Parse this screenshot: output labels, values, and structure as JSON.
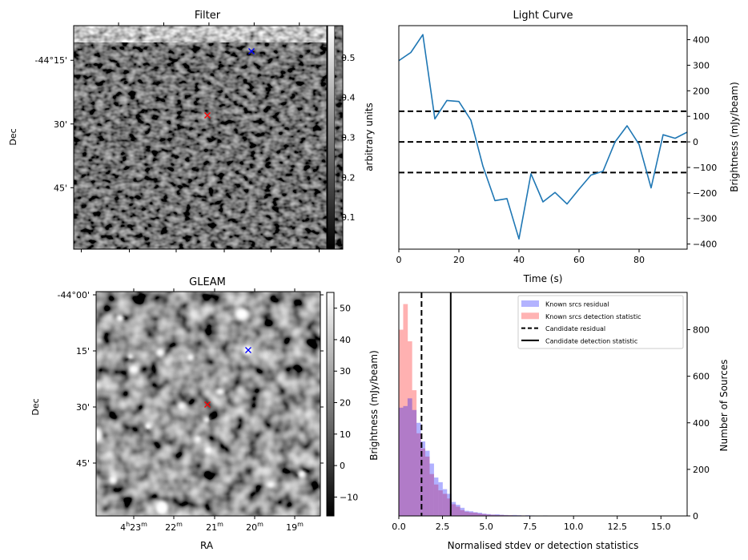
{
  "chart_data": [
    {
      "id": "filter",
      "type": "heatmap",
      "title": "Filter",
      "xlabel": "",
      "ylabel": "Dec",
      "ytick_labels": [
        "-44°15'",
        "30'",
        "45'"
      ],
      "xtick_labels": [],
      "colorbar": {
        "label": "arbitrary units",
        "ticks": [
          "0.1",
          "0.2",
          "0.3",
          "0.4",
          "0.5"
        ],
        "range": [
          0.02,
          0.58
        ],
        "colormap": "gray"
      },
      "markers": [
        {
          "name": "candidate",
          "symbol": "x",
          "color": "#ff0000",
          "ra_min": 21.1,
          "dec_arcmin": 28
        },
        {
          "name": "known-source",
          "symbol": "x",
          "color": "#0000ff",
          "ra_min": 20.1,
          "dec_arcmin": 13
        }
      ]
    },
    {
      "id": "light-curve",
      "type": "line",
      "title": "Light Curve",
      "xlabel": "Time (s)",
      "ylabel": "Brightness (mJy/beam)",
      "xlim": [
        0,
        96
      ],
      "ylim": [
        -420,
        455
      ],
      "xtick_labels": [
        "0",
        "20",
        "40",
        "60",
        "80"
      ],
      "xticks": [
        0,
        20,
        40,
        60,
        80
      ],
      "ytick_labels": [
        "−400",
        "−300",
        "−200",
        "−100",
        "0",
        "100",
        "200",
        "300",
        "400"
      ],
      "yticks": [
        -400,
        -300,
        -200,
        -100,
        0,
        100,
        200,
        300,
        400
      ],
      "series": [
        {
          "name": "light curve",
          "color": "#1f77b4",
          "x": [
            0,
            4,
            8,
            12,
            16,
            20,
            24,
            28,
            32,
            36,
            40,
            44,
            48,
            52,
            56,
            60,
            64,
            68,
            72,
            76,
            80,
            84,
            88,
            92,
            96
          ],
          "y": [
            318,
            350,
            420,
            90,
            162,
            158,
            85,
            -95,
            -230,
            -222,
            -380,
            -125,
            -235,
            -198,
            -243,
            -185,
            -130,
            -115,
            0,
            63,
            -10,
            -180,
            28,
            14,
            38
          ]
        }
      ],
      "hlines": [
        {
          "y": 120,
          "style": "dashed",
          "color": "#000000"
        },
        {
          "y": 0,
          "style": "dashed",
          "color": "#000000"
        },
        {
          "y": -120,
          "style": "dashed",
          "color": "#000000"
        }
      ]
    },
    {
      "id": "gleam",
      "type": "heatmap",
      "title": "GLEAM",
      "xlabel": "RA",
      "ylabel": "Dec",
      "xtick_labels": [
        {
          "h": "4",
          "m": "23"
        },
        {
          "h": "",
          "m": "22"
        },
        {
          "h": "",
          "m": "21"
        },
        {
          "h": "",
          "m": "20"
        },
        {
          "h": "",
          "m": "19"
        }
      ],
      "ytick_labels": [
        "-44°00'",
        "15'",
        "30'",
        "45'"
      ],
      "colorbar": {
        "label": "Brightness (mJy/beam)",
        "ticks": [
          "−10",
          "0",
          "10",
          "20",
          "30",
          "40",
          "50"
        ],
        "range": [
          -16,
          55
        ],
        "colormap": "gray"
      },
      "markers": [
        {
          "name": "candidate",
          "symbol": "x",
          "color": "#ff0000",
          "ra_min": 21.15,
          "dec_arcmin": 29.5
        },
        {
          "name": "known-source",
          "symbol": "x",
          "color": "#0000ff",
          "ra_min": 20.15,
          "dec_arcmin": 15
        }
      ]
    },
    {
      "id": "histogram",
      "type": "bar",
      "title": "",
      "xlabel": "Normalised stdev or detection statistics",
      "ylabel_left": "Brightness (mJy/beam)",
      "ylabel": "Number of Sources",
      "xlim": [
        0,
        16.5
      ],
      "ylim": [
        0,
        960
      ],
      "xtick_labels": [
        "0.0",
        "2.5",
        "5.0",
        "7.5",
        "10.0",
        "12.5",
        "15.0"
      ],
      "xticks": [
        0,
        2.5,
        5,
        7.5,
        10,
        12.5,
        15
      ],
      "ytick_labels": [
        "0",
        "200",
        "400",
        "600",
        "800"
      ],
      "yticks": [
        0,
        200,
        400,
        600,
        800
      ],
      "bin_width": 0.25,
      "series": [
        {
          "name": "Known srcs residual",
          "color": "#0000ff",
          "alpha": 0.3,
          "bin_start": 0,
          "values": [
            465,
            472,
            505,
            455,
            400,
            320,
            280,
            225,
            165,
            145,
            115,
            95,
            60,
            48,
            35,
            22,
            20,
            16,
            14,
            10,
            8,
            6,
            7,
            5,
            4,
            3,
            4,
            3,
            2,
            3,
            2,
            1,
            1,
            2,
            1,
            1,
            1,
            1,
            0,
            1,
            0,
            1,
            0,
            0,
            0,
            0,
            0,
            1
          ]
        },
        {
          "name": "Known srcs detection statistic",
          "color": "#ff0000",
          "alpha": 0.3,
          "bin_start": 0,
          "values": [
            800,
            910,
            750,
            540,
            355,
            290,
            255,
            180,
            135,
            110,
            95,
            75,
            50,
            40,
            25,
            18,
            15,
            14,
            10,
            8,
            6,
            5,
            4,
            4,
            3,
            3,
            2,
            2,
            2,
            1,
            1,
            1,
            1,
            1,
            0,
            1,
            0,
            1,
            0,
            0,
            0,
            0,
            0,
            0,
            0,
            0,
            1,
            0,
            0,
            0,
            0,
            0,
            0,
            0,
            0,
            0,
            0,
            0,
            0,
            0,
            0,
            0,
            1
          ]
        }
      ],
      "vlines": [
        {
          "name": "Candidate residual",
          "x": 1.3,
          "style": "dashed",
          "color": "#000000"
        },
        {
          "name": "Candidate detection statistic",
          "x": 2.97,
          "style": "solid",
          "color": "#000000"
        }
      ],
      "legend": {
        "position": "top-right",
        "entries": [
          {
            "label": "Known srcs residual",
            "kind": "patch",
            "color": "#b3b3ff"
          },
          {
            "label": "Known srcs detection statistic",
            "kind": "patch",
            "color": "#ffb3b3"
          },
          {
            "label": "Candidate residual",
            "kind": "dashed",
            "color": "#000000"
          },
          {
            "label": "Candidate detection statistic",
            "kind": "solid",
            "color": "#000000"
          }
        ]
      }
    }
  ]
}
